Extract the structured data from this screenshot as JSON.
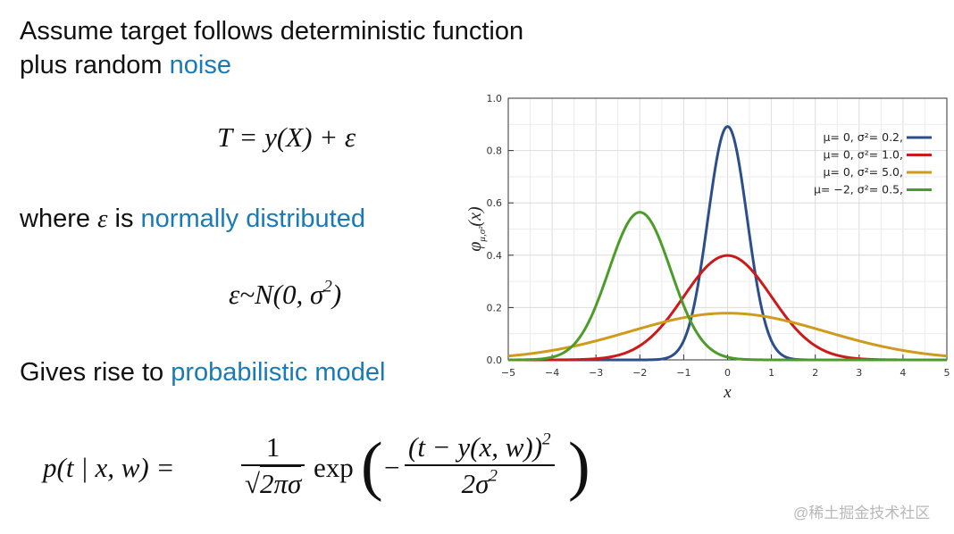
{
  "heading": {
    "line1": "Assume target follows deterministic function",
    "line2_plain": "plus random ",
    "line2_highlight": "noise"
  },
  "eq1": "T = y(X) + ε",
  "where": {
    "prefix": "where ",
    "symbol": "ε",
    "middle": " is ",
    "highlight": "normally distributed"
  },
  "eq2": {
    "body": "ε~N(0, σ",
    "sup": "2",
    "close": ")"
  },
  "gives": {
    "prefix": "Gives rise to ",
    "highlight": "probabilistic model"
  },
  "eq3": {
    "lhs": "p(t | x, w) =",
    "frac1_num": "1",
    "sqrt_symbol": "√",
    "frac1_den": "2πσ",
    "exp": "exp",
    "paren_left": "(",
    "minus": "−",
    "frac2_num": "(t − y(x, w))",
    "frac2_num_sup": "2",
    "frac2_den": "2σ",
    "frac2_den_sup": "2",
    "paren_right": ")"
  },
  "watermark": "@稀土掘金技术社区",
  "colors": {
    "accent": "#1a7ab8",
    "series": [
      "#2c4f8c",
      "#cc1a1a",
      "#d09a1a",
      "#4c9c2a"
    ]
  },
  "chart_data": {
    "type": "line",
    "xlabel": "x",
    "ylabel": "φ",
    "ylabel_sub": "μ,σ²",
    "ylabel_arg": "(x)",
    "xlim": [
      -5,
      5
    ],
    "ylim": [
      0,
      1.0
    ],
    "xticks": [
      -5,
      -4,
      -3,
      -2,
      -1,
      0,
      1,
      2,
      3,
      4,
      5
    ],
    "yticks": [
      0.0,
      0.2,
      0.4,
      0.6,
      0.8,
      1.0
    ],
    "ytick_labels": [
      "0.0",
      "0.2",
      "0.4",
      "0.6",
      "0.8",
      "1.0"
    ],
    "xtick_labels": [
      "−5",
      "−4",
      "−3",
      "−2",
      "−1",
      "0",
      "1",
      "2",
      "3",
      "4",
      "5"
    ],
    "grid": true,
    "legend": "top-right",
    "series": [
      {
        "name": "μ= 0,   σ²= 0.2,",
        "mu": 0,
        "var": 0.2
      },
      {
        "name": "μ= 0,   σ²= 1.0,",
        "mu": 0,
        "var": 1.0
      },
      {
        "name": "μ= 0,   σ²= 5.0,",
        "mu": 0,
        "var": 5.0
      },
      {
        "name": "μ= −2,  σ²= 0.5,",
        "mu": -2,
        "var": 0.5
      }
    ]
  }
}
